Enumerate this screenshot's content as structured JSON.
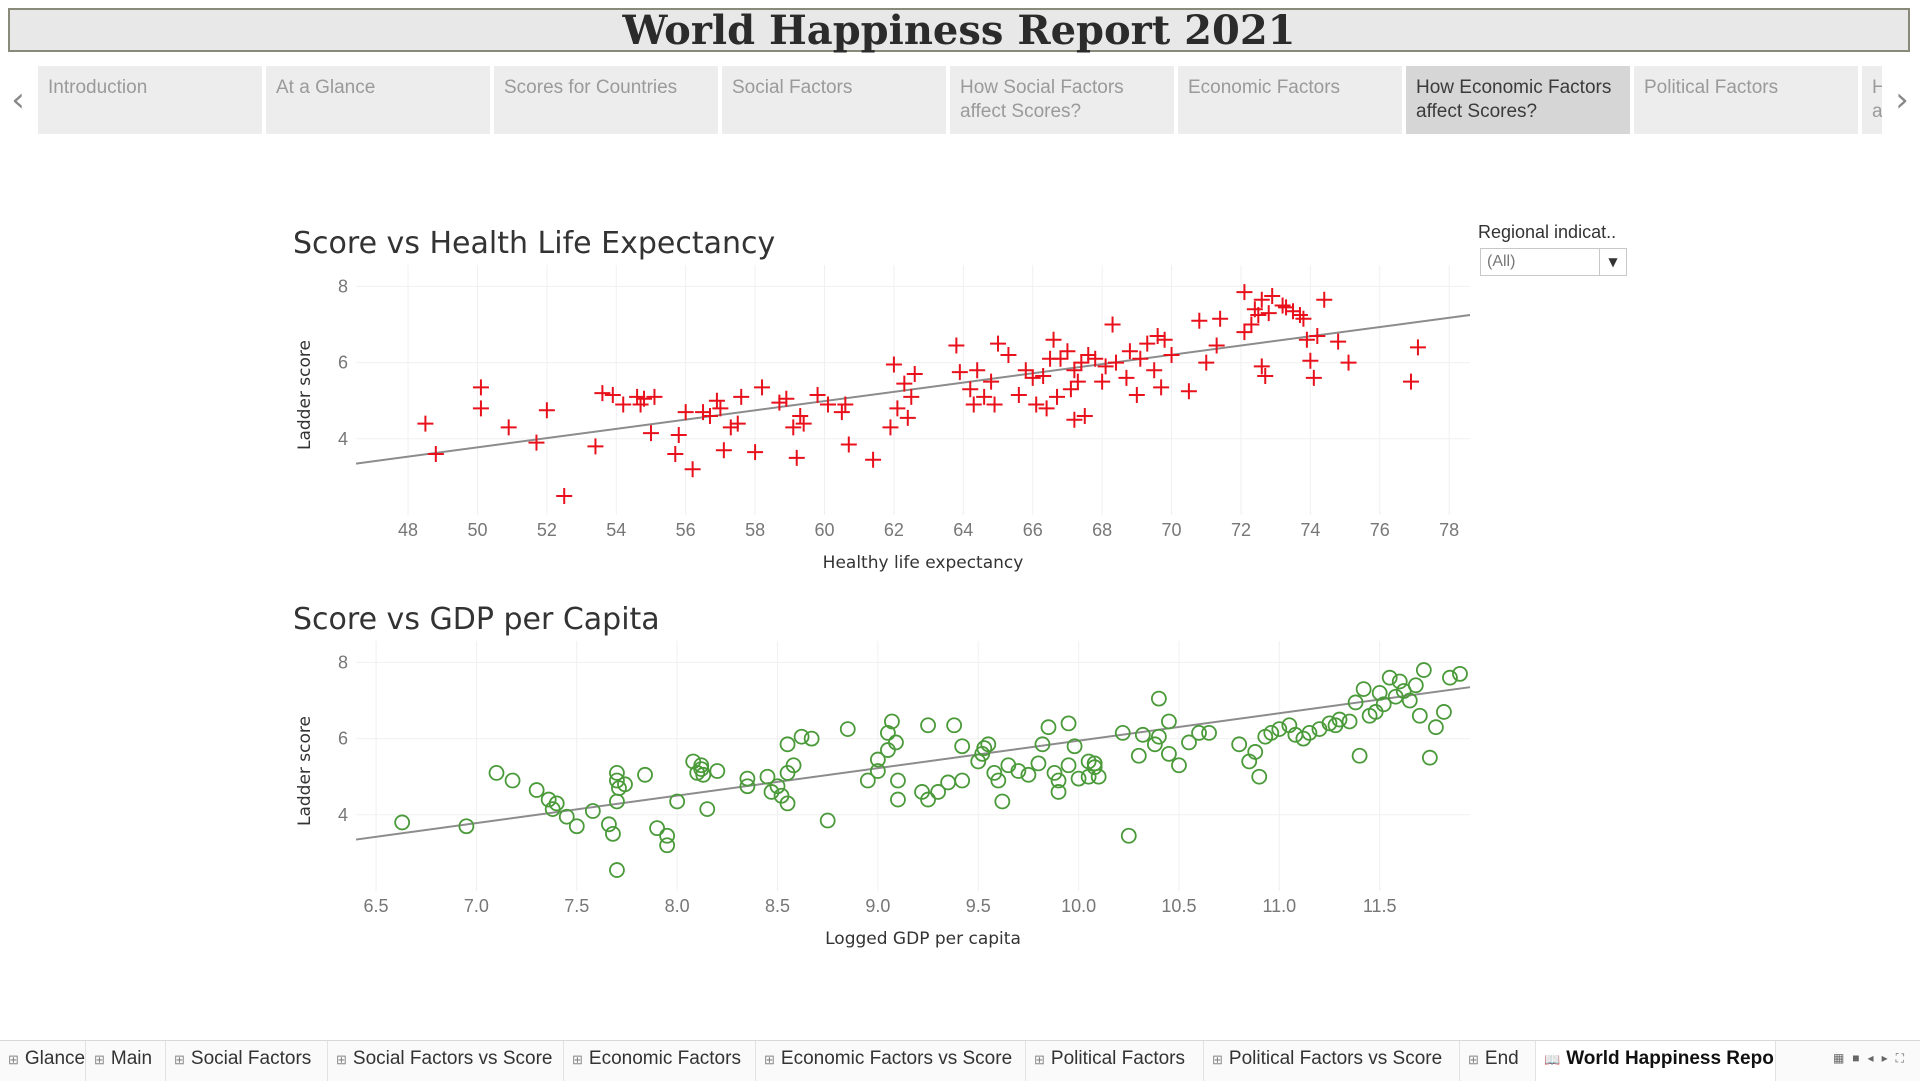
{
  "header": {
    "title": "World Happiness Report 2021"
  },
  "story_nav": {
    "prev_icon": "chevron-left-icon",
    "next_icon": "chevron-right-icon",
    "tabs": [
      {
        "label": "Introduction"
      },
      {
        "label": "At a Glance"
      },
      {
        "label": "Scores for Countries"
      },
      {
        "label": "Social Factors"
      },
      {
        "label": "How Social Factors affect Scores?"
      },
      {
        "label": "Economic Factors"
      },
      {
        "label": "How Economic Factors affect Scores?",
        "active": true
      },
      {
        "label": "Political Factors"
      },
      {
        "label": "How Political Factors affect Scores?"
      }
    ]
  },
  "filter": {
    "label": "Regional indicat..",
    "value": "(All)",
    "icon": "dropdown-arrow-icon"
  },
  "colors": {
    "health_marks": "#e8101a",
    "gdp_marks": "#4a9a3a",
    "trend": "#8c8c8c"
  },
  "chart_data": [
    {
      "type": "scatter",
      "title": "Score vs Health Life Expectancy",
      "xlabel": "Healthy life expectancy",
      "ylabel": "Ladder score",
      "marker": "cross",
      "xlim": [
        46.5,
        78.6
      ],
      "ylim": [
        2.0,
        8.3
      ],
      "xticks": [
        48,
        50,
        52,
        54,
        56,
        58,
        60,
        62,
        64,
        66,
        68,
        70,
        72,
        74,
        76,
        78
      ],
      "yticks": [
        4,
        6,
        8
      ],
      "trendline": [
        [
          46.5,
          3.35
        ],
        [
          78.6,
          7.25
        ]
      ],
      "points": [
        [
          48.5,
          4.4
        ],
        [
          48.8,
          3.6
        ],
        [
          50.1,
          5.35
        ],
        [
          50.1,
          4.8
        ],
        [
          50.9,
          4.3
        ],
        [
          51.7,
          3.9
        ],
        [
          52.0,
          4.75
        ],
        [
          52.5,
          2.5
        ],
        [
          53.4,
          3.8
        ],
        [
          53.6,
          5.2
        ],
        [
          53.9,
          5.15
        ],
        [
          54.2,
          4.9
        ],
        [
          54.6,
          5.1
        ],
        [
          54.7,
          4.9
        ],
        [
          54.8,
          5.05
        ],
        [
          55.0,
          4.15
        ],
        [
          55.1,
          5.1
        ],
        [
          55.7,
          3.6
        ],
        [
          55.8,
          4.1
        ],
        [
          56.0,
          4.7
        ],
        [
          56.2,
          3.2
        ],
        [
          56.5,
          4.7
        ],
        [
          56.7,
          4.6
        ],
        [
          56.9,
          5.0
        ],
        [
          57.0,
          4.8
        ],
        [
          57.1,
          3.7
        ],
        [
          57.3,
          4.3
        ],
        [
          57.5,
          4.4
        ],
        [
          57.6,
          5.1
        ],
        [
          58.0,
          3.65
        ],
        [
          58.2,
          5.35
        ],
        [
          58.7,
          4.95
        ],
        [
          58.9,
          5.05
        ],
        [
          59.1,
          4.3
        ],
        [
          59.2,
          3.5
        ],
        [
          59.3,
          4.6
        ],
        [
          59.4,
          4.4
        ],
        [
          59.8,
          5.15
        ],
        [
          60.1,
          4.9
        ],
        [
          60.5,
          4.7
        ],
        [
          60.6,
          4.9
        ],
        [
          60.7,
          3.85
        ],
        [
          61.4,
          3.45
        ],
        [
          61.9,
          4.3
        ],
        [
          62.0,
          5.95
        ],
        [
          62.1,
          4.8
        ],
        [
          62.3,
          5.45
        ],
        [
          62.4,
          4.55
        ],
        [
          62.5,
          5.1
        ],
        [
          62.6,
          5.7
        ],
        [
          63.8,
          6.45
        ],
        [
          63.9,
          5.75
        ],
        [
          64.2,
          5.3
        ],
        [
          64.3,
          4.9
        ],
        [
          64.4,
          5.8
        ],
        [
          64.6,
          5.1
        ],
        [
          64.8,
          5.5
        ],
        [
          64.9,
          4.9
        ],
        [
          65.0,
          6.5
        ],
        [
          65.3,
          6.2
        ],
        [
          65.6,
          5.15
        ],
        [
          65.8,
          5.8
        ],
        [
          66.0,
          5.6
        ],
        [
          66.1,
          4.9
        ],
        [
          66.3,
          5.65
        ],
        [
          66.4,
          4.8
        ],
        [
          66.5,
          6.1
        ],
        [
          66.6,
          6.6
        ],
        [
          66.7,
          5.1
        ],
        [
          66.8,
          6.1
        ],
        [
          67.0,
          6.3
        ],
        [
          67.1,
          5.3
        ],
        [
          67.2,
          4.5
        ],
        [
          67.3,
          5.5
        ],
        [
          67.4,
          6.0
        ],
        [
          67.5,
          4.6
        ],
        [
          67.6,
          6.2
        ],
        [
          67.8,
          6.1
        ],
        [
          68.0,
          5.5
        ],
        [
          68.1,
          5.9
        ],
        [
          68.3,
          7.0
        ],
        [
          68.4,
          6.0
        ],
        [
          68.7,
          5.6
        ],
        [
          68.8,
          6.3
        ],
        [
          69.0,
          5.15
        ],
        [
          69.1,
          6.1
        ],
        [
          69.3,
          6.5
        ],
        [
          69.5,
          5.8
        ],
        [
          69.6,
          6.7
        ],
        [
          69.7,
          5.35
        ],
        [
          69.8,
          6.6
        ],
        [
          70.0,
          6.2
        ],
        [
          70.5,
          5.25
        ],
        [
          70.8,
          7.1
        ],
        [
          71.0,
          6.0
        ],
        [
          71.3,
          6.45
        ],
        [
          71.4,
          7.15
        ],
        [
          72.1,
          7.85
        ],
        [
          72.1,
          6.8
        ],
        [
          72.3,
          7.0
        ],
        [
          72.4,
          7.4
        ],
        [
          72.5,
          7.25
        ],
        [
          72.6,
          7.65
        ],
        [
          72.6,
          5.9
        ],
        [
          72.7,
          5.65
        ],
        [
          72.8,
          7.3
        ],
        [
          72.9,
          7.75
        ],
        [
          73.2,
          7.5
        ],
        [
          73.3,
          7.45
        ],
        [
          73.5,
          7.35
        ],
        [
          73.7,
          7.25
        ],
        [
          73.8,
          7.15
        ],
        [
          73.9,
          6.6
        ],
        [
          74.0,
          6.05
        ],
        [
          74.1,
          5.6
        ],
        [
          74.2,
          6.7
        ],
        [
          74.4,
          7.65
        ],
        [
          74.8,
          6.55
        ],
        [
          75.1,
          6.0
        ],
        [
          76.9,
          5.5
        ],
        [
          77.1,
          6.4
        ],
        [
          67.2,
          5.8
        ]
      ]
    },
    {
      "type": "scatter",
      "title": "Score vs GDP per Capita",
      "xlabel": "Logged GDP per capita",
      "ylabel": "Ladder score",
      "marker": "circle",
      "xlim": [
        6.4,
        11.95
      ],
      "ylim": [
        2.0,
        8.3
      ],
      "xticks": [
        "6.5",
        "7.0",
        "7.5",
        "8.0",
        "8.5",
        "9.0",
        "9.5",
        "10.0",
        "10.5",
        "11.0",
        "11.5"
      ],
      "yticks": [
        4,
        6,
        8
      ],
      "trendline": [
        [
          6.4,
          3.35
        ],
        [
          11.95,
          7.35
        ]
      ],
      "points": [
        [
          6.63,
          3.8
        ],
        [
          6.95,
          3.7
        ],
        [
          7.1,
          5.1
        ],
        [
          7.18,
          4.9
        ],
        [
          7.3,
          4.65
        ],
        [
          7.36,
          4.4
        ],
        [
          7.38,
          4.15
        ],
        [
          7.4,
          4.3
        ],
        [
          7.45,
          3.95
        ],
        [
          7.5,
          3.7
        ],
        [
          7.58,
          4.1
        ],
        [
          7.66,
          3.75
        ],
        [
          7.68,
          3.5
        ],
        [
          7.7,
          5.1
        ],
        [
          7.7,
          4.9
        ],
        [
          7.71,
          4.7
        ],
        [
          7.7,
          4.35
        ],
        [
          7.7,
          2.55
        ],
        [
          7.74,
          4.8
        ],
        [
          7.84,
          5.05
        ],
        [
          7.9,
          3.65
        ],
        [
          7.95,
          3.45
        ],
        [
          7.95,
          3.2
        ],
        [
          8.0,
          4.35
        ],
        [
          8.08,
          5.4
        ],
        [
          8.1,
          5.1
        ],
        [
          8.12,
          5.3
        ],
        [
          8.12,
          5.2
        ],
        [
          8.13,
          5.05
        ],
        [
          8.15,
          4.15
        ],
        [
          8.2,
          5.15
        ],
        [
          8.35,
          4.75
        ],
        [
          8.35,
          4.95
        ],
        [
          8.45,
          5.0
        ],
        [
          8.47,
          4.6
        ],
        [
          8.5,
          4.75
        ],
        [
          8.52,
          4.5
        ],
        [
          8.55,
          4.3
        ],
        [
          8.55,
          5.1
        ],
        [
          8.58,
          5.3
        ],
        [
          8.55,
          5.85
        ],
        [
          8.62,
          6.05
        ],
        [
          8.67,
          6.0
        ],
        [
          8.75,
          3.85
        ],
        [
          8.85,
          6.25
        ],
        [
          8.95,
          4.9
        ],
        [
          9.0,
          5.15
        ],
        [
          9.0,
          5.45
        ],
        [
          9.05,
          6.15
        ],
        [
          9.05,
          5.7
        ],
        [
          9.07,
          6.45
        ],
        [
          9.09,
          5.9
        ],
        [
          9.1,
          4.9
        ],
        [
          9.1,
          4.4
        ],
        [
          9.22,
          4.6
        ],
        [
          9.25,
          4.4
        ],
        [
          9.25,
          6.35
        ],
        [
          9.3,
          4.6
        ],
        [
          9.35,
          4.85
        ],
        [
          9.38,
          6.35
        ],
        [
          9.42,
          5.8
        ],
        [
          9.42,
          4.9
        ],
        [
          9.5,
          5.4
        ],
        [
          9.52,
          5.6
        ],
        [
          9.53,
          5.75
        ],
        [
          9.55,
          5.85
        ],
        [
          9.58,
          5.1
        ],
        [
          9.6,
          4.9
        ],
        [
          9.62,
          4.35
        ],
        [
          9.65,
          5.3
        ],
        [
          9.7,
          5.15
        ],
        [
          9.75,
          5.05
        ],
        [
          9.8,
          5.35
        ],
        [
          9.82,
          5.85
        ],
        [
          9.85,
          6.3
        ],
        [
          9.88,
          5.1
        ],
        [
          9.9,
          4.9
        ],
        [
          9.9,
          4.6
        ],
        [
          9.95,
          5.3
        ],
        [
          9.95,
          6.4
        ],
        [
          9.98,
          5.8
        ],
        [
          10.0,
          4.95
        ],
        [
          10.05,
          5.4
        ],
        [
          10.05,
          5.0
        ],
        [
          10.08,
          5.25
        ],
        [
          10.08,
          5.35
        ],
        [
          10.1,
          5.0
        ],
        [
          10.22,
          6.15
        ],
        [
          10.25,
          3.45
        ],
        [
          10.3,
          5.55
        ],
        [
          10.32,
          6.1
        ],
        [
          10.38,
          5.85
        ],
        [
          10.4,
          6.05
        ],
        [
          10.4,
          7.05
        ],
        [
          10.45,
          5.6
        ],
        [
          10.45,
          6.45
        ],
        [
          10.5,
          5.3
        ],
        [
          10.55,
          5.9
        ],
        [
          10.6,
          6.15
        ],
        [
          10.65,
          6.15
        ],
        [
          10.8,
          5.85
        ],
        [
          10.85,
          5.4
        ],
        [
          10.88,
          5.65
        ],
        [
          10.9,
          5.0
        ],
        [
          10.93,
          6.05
        ],
        [
          10.96,
          6.15
        ],
        [
          11.0,
          6.25
        ],
        [
          11.05,
          6.35
        ],
        [
          11.08,
          6.1
        ],
        [
          11.12,
          6.0
        ],
        [
          11.15,
          6.15
        ],
        [
          11.2,
          6.25
        ],
        [
          11.25,
          6.4
        ],
        [
          11.28,
          6.35
        ],
        [
          11.3,
          6.5
        ],
        [
          11.35,
          6.45
        ],
        [
          11.38,
          6.95
        ],
        [
          11.4,
          5.55
        ],
        [
          11.42,
          7.3
        ],
        [
          11.45,
          6.6
        ],
        [
          11.48,
          6.7
        ],
        [
          11.5,
          7.2
        ],
        [
          11.52,
          6.9
        ],
        [
          11.55,
          7.6
        ],
        [
          11.58,
          7.1
        ],
        [
          11.6,
          7.5
        ],
        [
          11.62,
          7.25
        ],
        [
          11.65,
          7.0
        ],
        [
          11.68,
          7.4
        ],
        [
          11.7,
          6.6
        ],
        [
          11.72,
          7.8
        ],
        [
          11.75,
          5.5
        ],
        [
          11.78,
          6.3
        ],
        [
          11.82,
          6.7
        ],
        [
          11.85,
          7.6
        ],
        [
          11.9,
          7.7
        ]
      ]
    }
  ],
  "bottom_tabs": [
    {
      "label": "Glance"
    },
    {
      "label": "Main"
    },
    {
      "label": "Social Factors"
    },
    {
      "label": "Social Factors vs Score"
    },
    {
      "label": "Economic Factors"
    },
    {
      "label": "Economic Factors vs Score"
    },
    {
      "label": "Political Factors"
    },
    {
      "label": "Political Factors vs Score"
    },
    {
      "label": "End"
    },
    {
      "label": "World Happiness Report",
      "active": true
    }
  ]
}
